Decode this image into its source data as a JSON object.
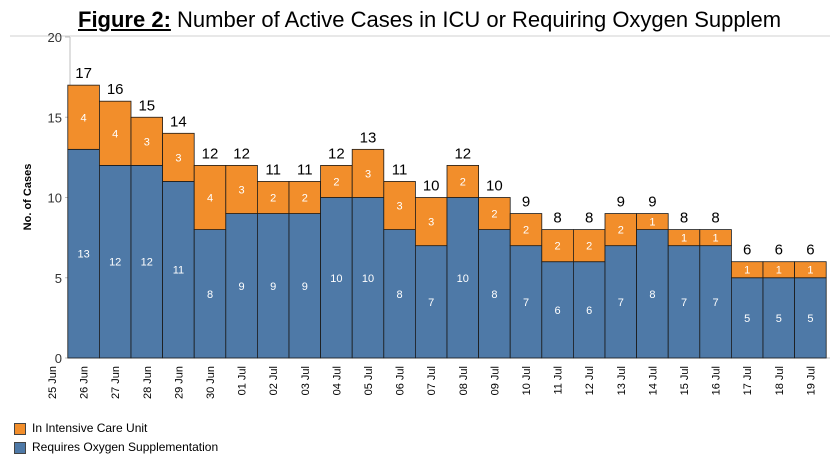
{
  "title": {
    "prefix": "Figure 2:",
    "text": "Number of Active Cases in ICU or Requiring Oxygen Supplem"
  },
  "colors": {
    "icu": "#f28e2b",
    "oxygen": "#4e79a7"
  },
  "chart_data": {
    "type": "bar",
    "stacked": true,
    "ylabel": "No. of Cases",
    "ylim": [
      0,
      20
    ],
    "yticks": [
      0,
      5,
      10,
      15,
      20
    ],
    "grid": false,
    "legend_position": "bottom-left",
    "categories": [
      "25 Jun",
      "26 Jun",
      "27 Jun",
      "28 Jun",
      "29 Jun",
      "30 Jun",
      "01 Jul",
      "02 Jul",
      "03 Jul",
      "04 Jul",
      "05 Jul",
      "06 Jul",
      "07 Jul",
      "08 Jul",
      "09 Jul",
      "10 Jul",
      "11 Jul",
      "12 Jul",
      "13 Jul",
      "14 Jul",
      "15 Jul",
      "16 Jul",
      "17 Jul",
      "18 Jul",
      "19 Jul"
    ],
    "totals": [
      null,
      17,
      16,
      15,
      14,
      12,
      12,
      11,
      11,
      12,
      13,
      11,
      10,
      12,
      10,
      9,
      8,
      8,
      9,
      9,
      8,
      8,
      6,
      6,
      6
    ],
    "series": [
      {
        "name": "Requires Oxygen Supplementation",
        "values": [
          null,
          13,
          12,
          12,
          11,
          8,
          9,
          9,
          9,
          10,
          10,
          8,
          7,
          10,
          8,
          7,
          6,
          6,
          7,
          8,
          7,
          7,
          5,
          5,
          5
        ]
      },
      {
        "name": "In Intensive Care Unit",
        "values": [
          null,
          4,
          4,
          3,
          3,
          4,
          3,
          2,
          2,
          2,
          3,
          3,
          3,
          2,
          2,
          2,
          2,
          2,
          2,
          1,
          1,
          1,
          1,
          1,
          1
        ]
      }
    ]
  }
}
